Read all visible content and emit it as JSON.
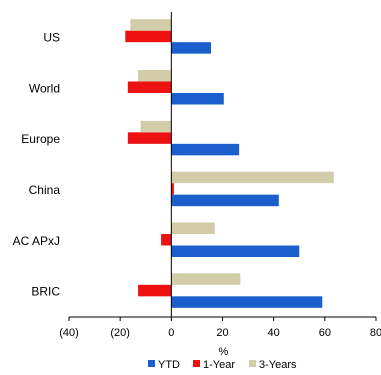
{
  "chart_data": {
    "type": "bar",
    "orientation": "horizontal",
    "categories": [
      "US",
      "World",
      "Europe",
      "China",
      "AC APxJ",
      "BRIC"
    ],
    "series": [
      {
        "name": "YTD",
        "color": "#1a5fcc",
        "values": [
          15.5,
          20.5,
          26.5,
          42,
          50,
          59
        ]
      },
      {
        "name": "1-Year",
        "color": "#ee1111",
        "values": [
          -18,
          -17,
          -17,
          1,
          -4,
          -13
        ]
      },
      {
        "name": "3-Years",
        "color": "#d2cca8",
        "values": [
          -16,
          -13,
          -12,
          63.5,
          17,
          27
        ]
      }
    ],
    "xlabel": "%",
    "xlim": [
      -40,
      80
    ],
    "xticks": [
      "(40)",
      "(20)",
      "0",
      "20",
      "40",
      "60",
      "80"
    ],
    "legend_position": "bottom",
    "grid": false
  }
}
